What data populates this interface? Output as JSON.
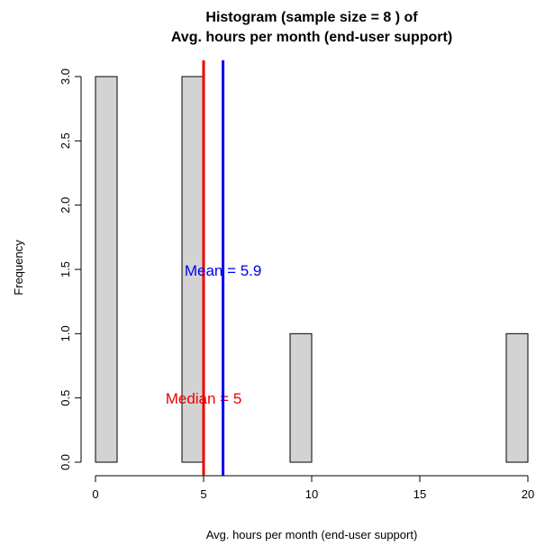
{
  "chart_data": {
    "type": "bar",
    "title": "Histogram (sample size =  8 ) of",
    "subtitle": "Avg. hours per month (end-user support)",
    "xlabel": "Avg. hours per month (end-user support)",
    "ylabel": "Frequency",
    "xlim": [
      0,
      20
    ],
    "ylim": [
      0,
      3
    ],
    "x_ticks": [
      "0",
      "5",
      "10",
      "15",
      "20"
    ],
    "y_ticks": [
      "0.0",
      "0.5",
      "1.0",
      "1.5",
      "2.0",
      "2.5",
      "3.0"
    ],
    "bins": [
      {
        "start": 0,
        "end": 1,
        "count": 3
      },
      {
        "start": 4,
        "end": 5,
        "count": 3
      },
      {
        "start": 9,
        "end": 10,
        "count": 1
      },
      {
        "start": 19,
        "end": 20,
        "count": 1
      }
    ],
    "bar_fill": "#d3d3d3",
    "bar_stroke": "#000000",
    "mean": {
      "value": 5.9,
      "label": "Mean = 5.9",
      "color": "#0000ee"
    },
    "median": {
      "value": 5,
      "label": "Median = 5",
      "color": "#ee0000"
    },
    "grid": false,
    "legend": "none"
  }
}
